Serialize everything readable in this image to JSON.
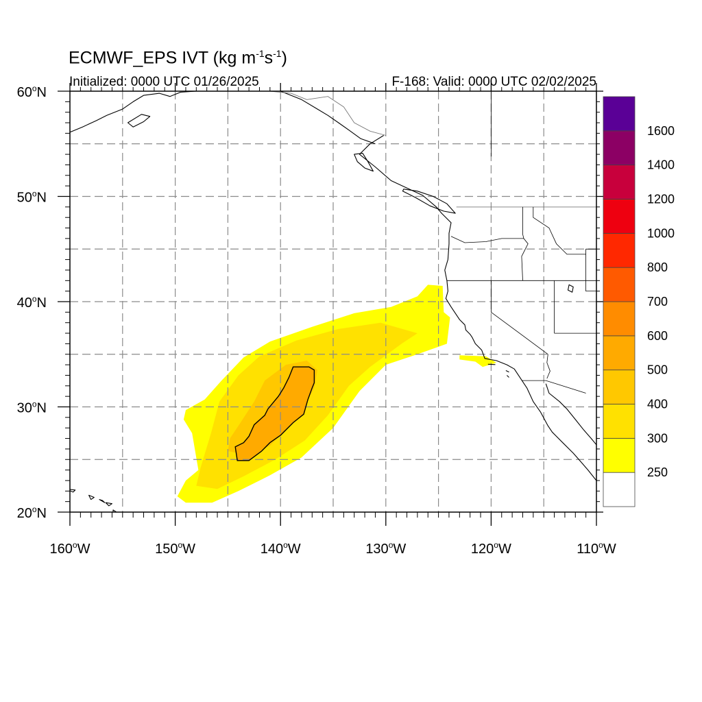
{
  "title": {
    "main_prefix": "ECMWF_EPS IVT (kg m",
    "exp1": "-1",
    "mid": "s",
    "exp2": "-1",
    "suffix": ")"
  },
  "subtitle": {
    "initialized": "Initialized: 0000 UTC 01/26/2025",
    "valid": "F-168: Valid: 0000 UTC 02/02/2025"
  },
  "axes": {
    "lon_range": [
      -160,
      -110
    ],
    "lat_range": [
      20,
      60
    ],
    "x_ticks": [
      {
        "value": -160,
        "num": "160",
        "hemi": "W"
      },
      {
        "value": -150,
        "num": "150",
        "hemi": "W"
      },
      {
        "value": -140,
        "num": "140",
        "hemi": "W"
      },
      {
        "value": -130,
        "num": "130",
        "hemi": "W"
      },
      {
        "value": -120,
        "num": "120",
        "hemi": "W"
      },
      {
        "value": -110,
        "num": "110",
        "hemi": "W"
      }
    ],
    "y_ticks": [
      {
        "value": 20,
        "num": "20",
        "hemi": "N"
      },
      {
        "value": 30,
        "num": "30",
        "hemi": "N"
      },
      {
        "value": 40,
        "num": "40",
        "hemi": "N"
      },
      {
        "value": 50,
        "num": "50",
        "hemi": "N"
      },
      {
        "value": 60,
        "num": "60",
        "hemi": "N"
      }
    ],
    "grid_lon_step": 5,
    "grid_lat_step": 5
  },
  "colorbar": {
    "labels": [
      "250",
      "300",
      "400",
      "500",
      "600",
      "700",
      "800",
      "1000",
      "1200",
      "1400",
      "1600"
    ],
    "colors": [
      "#ffffff",
      "#ffff00",
      "#ffe100",
      "#ffc800",
      "#ffaa00",
      "#ff8c00",
      "#ff5a00",
      "#ff2800",
      "#ee0010",
      "#c8003c",
      "#8c0064",
      "#5a0096"
    ]
  },
  "ivt_field": {
    "contour_level": 500,
    "yellow_plume": [
      [
        -149.8,
        21.5
      ],
      [
        -149.0,
        20.9
      ],
      [
        -146.5,
        20.9
      ],
      [
        -144.0,
        22.0
      ],
      [
        -141.0,
        23.5
      ],
      [
        -138.0,
        25.2
      ],
      [
        -135.0,
        28.0
      ],
      [
        -132.5,
        31.5
      ],
      [
        -130.0,
        34.0
      ],
      [
        -127.0,
        35.0
      ],
      [
        -124.2,
        36.0
      ],
      [
        -123.9,
        38.5
      ],
      [
        -124.5,
        39.0
      ],
      [
        -124.6,
        41.5
      ],
      [
        -126.0,
        41.6
      ],
      [
        -127.0,
        40.5
      ],
      [
        -129.5,
        39.5
      ],
      [
        -133.0,
        38.9
      ],
      [
        -137.0,
        37.6
      ],
      [
        -141.0,
        36.2
      ],
      [
        -143.5,
        34.7
      ],
      [
        -145.6,
        32.5
      ],
      [
        -147.2,
        30.7
      ],
      [
        -149.0,
        29.7
      ],
      [
        -149.2,
        28.8
      ],
      [
        -148.4,
        27.5
      ],
      [
        -147.8,
        24.0
      ],
      [
        -149.0,
        23.0
      ]
    ],
    "gold_plume": [
      [
        -148.0,
        22.5
      ],
      [
        -146.0,
        22.2
      ],
      [
        -143.5,
        23.4
      ],
      [
        -140.5,
        25.0
      ],
      [
        -137.7,
        26.8
      ],
      [
        -135.5,
        29.2
      ],
      [
        -133.5,
        32.0
      ],
      [
        -131.5,
        33.8
      ],
      [
        -128.5,
        36.0
      ],
      [
        -127.0,
        37.0
      ],
      [
        -130.5,
        38.0
      ],
      [
        -134.5,
        37.4
      ],
      [
        -138.5,
        36.3
      ],
      [
        -142.0,
        34.8
      ],
      [
        -144.0,
        33.0
      ],
      [
        -145.8,
        30.5
      ],
      [
        -146.6,
        27.5
      ],
      [
        -147.6,
        24.2
      ]
    ],
    "orange_core": [
      [
        -145.0,
        25.8
      ],
      [
        -143.0,
        25.4
      ],
      [
        -141.0,
        26.3
      ],
      [
        -139.5,
        27.8
      ],
      [
        -138.0,
        29.5
      ],
      [
        -136.8,
        31.8
      ],
      [
        -136.5,
        33.5
      ],
      [
        -137.5,
        34.4
      ],
      [
        -139.5,
        34.0
      ],
      [
        -141.5,
        32.5
      ],
      [
        -142.5,
        30.5
      ],
      [
        -143.8,
        28.5
      ],
      [
        -144.8,
        27.0
      ]
    ],
    "contour": [
      [
        -144.1,
        24.9
      ],
      [
        -143.0,
        24.9
      ],
      [
        -141.8,
        25.8
      ],
      [
        -141.0,
        26.6
      ],
      [
        -140.0,
        27.3
      ],
      [
        -138.8,
        28.5
      ],
      [
        -137.8,
        29.3
      ],
      [
        -137.4,
        30.7
      ],
      [
        -137.0,
        31.8
      ],
      [
        -136.8,
        32.3
      ],
      [
        -136.8,
        33.5
      ],
      [
        -137.3,
        33.8
      ],
      [
        -138.8,
        33.8
      ],
      [
        -139.2,
        32.8
      ],
      [
        -139.7,
        31.8
      ],
      [
        -140.2,
        31.0
      ],
      [
        -141.2,
        29.8
      ],
      [
        -141.5,
        29.2
      ],
      [
        -142.5,
        28.3
      ],
      [
        -143.0,
        27.2
      ],
      [
        -143.5,
        26.6
      ],
      [
        -144.3,
        26.2
      ]
    ],
    "socal_patch": [
      [
        -123.0,
        34.9
      ],
      [
        -120.5,
        34.8
      ],
      [
        -119.5,
        34.2
      ],
      [
        -120.8,
        33.8
      ],
      [
        -121.5,
        34.3
      ],
      [
        -123.0,
        34.5
      ]
    ]
  },
  "geography": {
    "west_coast": [
      [
        -130.2,
        55.8
      ],
      [
        -131.5,
        55.0
      ],
      [
        -132.5,
        54.0
      ],
      [
        -131.0,
        52.8
      ],
      [
        -129.5,
        51.5
      ],
      [
        -128.0,
        50.8
      ],
      [
        -126.5,
        50.1
      ],
      [
        -125.2,
        49.0
      ],
      [
        -124.7,
        48.4
      ],
      [
        -123.8,
        47.5
      ],
      [
        -124.0,
        46.5
      ],
      [
        -124.0,
        45.5
      ],
      [
        -124.1,
        44.0
      ],
      [
        -124.4,
        43.0
      ],
      [
        -124.2,
        42.0
      ],
      [
        -124.1,
        41.0
      ],
      [
        -124.3,
        40.3
      ],
      [
        -123.8,
        39.5
      ],
      [
        -123.0,
        38.3
      ],
      [
        -122.5,
        37.8
      ],
      [
        -122.4,
        37.3
      ],
      [
        -122.0,
        36.9
      ],
      [
        -121.8,
        36.6
      ],
      [
        -121.5,
        36.0
      ],
      [
        -120.9,
        35.4
      ],
      [
        -120.6,
        34.6
      ],
      [
        -119.5,
        34.4
      ],
      [
        -118.5,
        34.0
      ],
      [
        -117.8,
        33.6
      ],
      [
        -117.2,
        32.7
      ],
      [
        -116.6,
        31.8
      ],
      [
        -116.0,
        30.5
      ],
      [
        -115.3,
        29.5
      ],
      [
        -114.6,
        28.2
      ],
      [
        -114.2,
        27.6
      ],
      [
        -113.2,
        26.6
      ],
      [
        -112.2,
        25.6
      ],
      [
        -111.5,
        24.8
      ],
      [
        -110.8,
        24.0
      ],
      [
        -110.0,
        23.0
      ]
    ],
    "gulf_coast": [
      [
        -114.8,
        32.2
      ],
      [
        -114.5,
        31.3
      ],
      [
        -113.5,
        30.5
      ],
      [
        -112.8,
        29.8
      ],
      [
        -112.0,
        28.8
      ],
      [
        -111.2,
        27.8
      ],
      [
        -110.5,
        27.0
      ],
      [
        -110.0,
        26.4
      ]
    ],
    "alaska_coast": [
      [
        -160.0,
        56.1
      ],
      [
        -158.8,
        56.6
      ],
      [
        -157.5,
        57.2
      ],
      [
        -156.5,
        57.7
      ],
      [
        -155.0,
        58.3
      ],
      [
        -154.0,
        59.0
      ],
      [
        -153.0,
        59.6
      ],
      [
        -151.5,
        59.8
      ],
      [
        -150.5,
        59.5
      ],
      [
        -149.5,
        59.9
      ],
      [
        -148.0,
        60.0
      ]
    ],
    "kodiak": [
      [
        -154.5,
        57.0
      ],
      [
        -153.2,
        57.8
      ],
      [
        -152.4,
        57.6
      ],
      [
        -153.0,
        57.1
      ],
      [
        -154.0,
        56.6
      ]
    ],
    "se_alaska": [
      [
        -140.0,
        60.0
      ],
      [
        -138.0,
        59.2
      ],
      [
        -136.5,
        58.3
      ],
      [
        -135.5,
        57.7
      ],
      [
        -134.5,
        57.0
      ],
      [
        -133.5,
        56.3
      ],
      [
        -132.4,
        55.5
      ],
      [
        -131.0,
        55.0
      ]
    ],
    "alaska_border": [
      [
        -141.0,
        60.0
      ],
      [
        -139.0,
        59.8
      ],
      [
        -137.5,
        59.2
      ],
      [
        -135.5,
        59.5
      ],
      [
        -134.0,
        58.5
      ],
      [
        -133.0,
        57.0
      ],
      [
        -131.5,
        56.2
      ],
      [
        -130.0,
        55.8
      ]
    ],
    "haida_gwaii": [
      [
        -133.0,
        54.0
      ],
      [
        -132.2,
        54.1
      ],
      [
        -131.7,
        53.3
      ],
      [
        -131.2,
        52.4
      ],
      [
        -132.0,
        52.7
      ],
      [
        -132.7,
        53.3
      ]
    ],
    "vancouver_island": [
      [
        -128.3,
        50.7
      ],
      [
        -127.0,
        50.5
      ],
      [
        -125.5,
        50.0
      ],
      [
        -124.2,
        49.3
      ],
      [
        -123.4,
        48.4
      ],
      [
        -124.5,
        48.6
      ],
      [
        -125.8,
        49.1
      ],
      [
        -127.2,
        49.9
      ],
      [
        -128.4,
        50.5
      ]
    ],
    "hawaii": [
      [
        [
          -160.4,
          22.2
        ],
        [
          -159.5,
          22.1
        ],
        [
          -159.7,
          21.9
        ]
      ],
      [
        [
          -158.2,
          21.6
        ],
        [
          -157.7,
          21.4
        ],
        [
          -158.0,
          21.2
        ]
      ],
      [
        [
          -157.2,
          21.2
        ],
        [
          -156.9,
          21.1
        ],
        [
          -156.7,
          20.9
        ]
      ],
      [
        [
          -156.6,
          20.9
        ],
        [
          -156.0,
          20.8
        ],
        [
          -156.3,
          20.6
        ]
      ],
      [
        [
          -155.9,
          20.2
        ],
        [
          -154.8,
          19.5
        ],
        [
          -155.9,
          19.0
        ]
      ]
    ],
    "us_canada_border": [
      [
        -123.3,
        49.0
      ],
      [
        -110.0,
        49.0
      ]
    ],
    "borders": [
      [
        [
          -120.0,
          60.0
        ],
        [
          -120.0,
          53.8
        ]
      ],
      [
        [
          -123.8,
          46.2
        ],
        [
          -122.5,
          45.6
        ],
        [
          -120.5,
          45.7
        ],
        [
          -119.0,
          46.0
        ],
        [
          -116.9,
          46.0
        ]
      ],
      [
        [
          -124.2,
          42.0
        ],
        [
          -110.0,
          42.0
        ]
      ],
      [
        [
          -120.0,
          42.0
        ],
        [
          -120.0,
          39.0
        ],
        [
          -114.6,
          35.0
        ]
      ],
      [
        [
          -114.6,
          35.0
        ],
        [
          -114.7,
          34.2
        ],
        [
          -114.4,
          33.4
        ],
        [
          -114.7,
          32.7
        ]
      ],
      [
        [
          -117.1,
          32.5
        ],
        [
          -114.8,
          32.5
        ],
        [
          -111.0,
          31.3
        ]
      ],
      [
        [
          -117.0,
          49.0
        ],
        [
          -117.0,
          46.4
        ],
        [
          -116.9,
          46.0
        ],
        [
          -116.5,
          45.5
        ],
        [
          -117.1,
          44.3
        ],
        [
          -117.0,
          42.0
        ]
      ],
      [
        [
          -114.0,
          42.0
        ],
        [
          -114.0,
          37.0
        ]
      ],
      [
        [
          -114.0,
          37.0
        ],
        [
          -110.0,
          37.0
        ]
      ],
      [
        [
          -111.0,
          45.0
        ],
        [
          -110.0,
          45.0
        ],
        [
          -110.0,
          41.0
        ],
        [
          -111.0,
          41.0
        ],
        [
          -111.0,
          45.0
        ]
      ],
      [
        [
          -116.0,
          49.0
        ],
        [
          -116.0,
          48.0
        ],
        [
          -114.5,
          47.0
        ],
        [
          -113.8,
          45.5
        ],
        [
          -112.8,
          44.5
        ],
        [
          -111.0,
          44.5
        ]
      ]
    ],
    "great_salt_lake": [
      [
        -112.6,
        41.6
      ],
      [
        -112.2,
        41.4
      ],
      [
        -112.3,
        40.9
      ],
      [
        -112.7,
        41.1
      ]
    ],
    "channel_islands": [
      [
        [
          -120.3,
          34.05
        ],
        [
          -119.6,
          34.02
        ]
      ],
      [
        [
          -118.6,
          33.45
        ],
        [
          -118.3,
          33.3
        ]
      ],
      [
        [
          -118.5,
          33.0
        ],
        [
          -118.3,
          32.8
        ]
      ]
    ]
  }
}
